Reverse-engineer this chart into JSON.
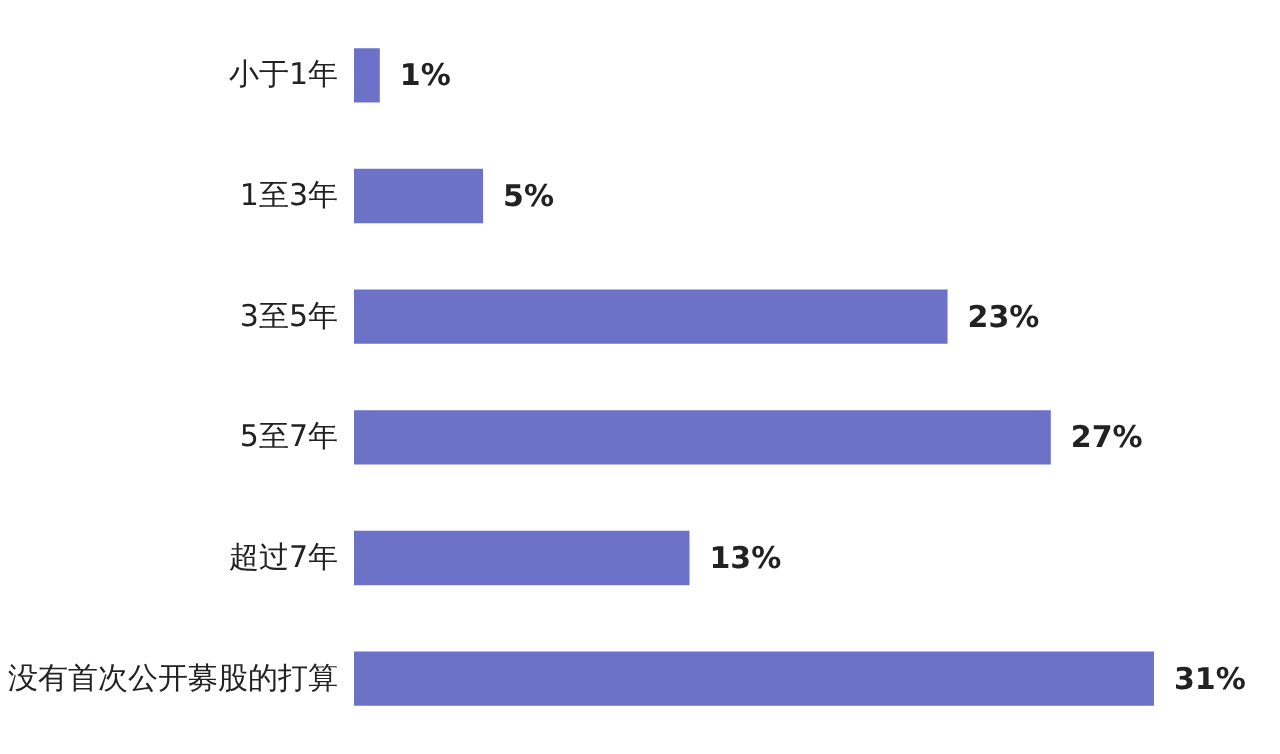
{
  "chart_data": {
    "type": "bar",
    "orientation": "horizontal",
    "categories": [
      "小于1年",
      "1至3年",
      "3至5年",
      "5至7年",
      "超过7年",
      "没有首次公开募股的打算"
    ],
    "values": [
      1,
      5,
      23,
      27,
      13,
      31
    ],
    "color": "#6b72c8",
    "value_labels": [
      "1%",
      "5%",
      "23%",
      "27%",
      "13%",
      "31%"
    ],
    "tick_labels": "y"
  }
}
